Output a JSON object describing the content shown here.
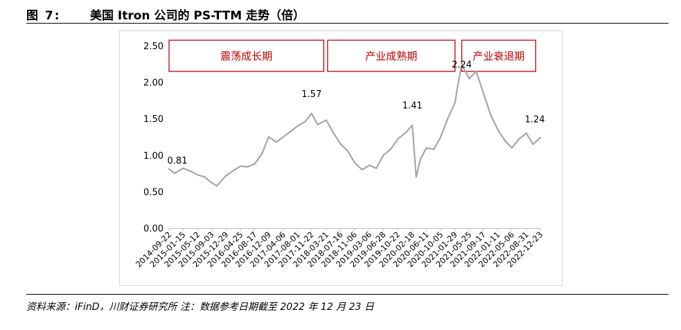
{
  "header": {
    "figure_label": "图 7:",
    "title": "美国 Itron 公司的 PS-TTM 走势（倍）"
  },
  "footer": {
    "source": "资料来源：iFinD，川财证券研究所   注：数据参考日期截至 2022 年 12 月 23 日"
  },
  "chart_data": {
    "type": "line",
    "title": "",
    "xlabel": "",
    "ylabel": "",
    "ylim": [
      0,
      2.5
    ],
    "yticks": [
      "0.00",
      "0.50",
      "1.00",
      "1.50",
      "2.00",
      "2.50"
    ],
    "x_tick_labels": [
      "2014-09-22",
      "2015-01-15",
      "2015-05-12",
      "2015-09-03",
      "2015-12-29",
      "2016-04-25",
      "2016-08-17",
      "2016-12-09",
      "2017-04-06",
      "2017-08-01",
      "2017-11-22",
      "2018-03-21",
      "2018-07-16",
      "2018-11-06",
      "2019-03-06",
      "2019-06-28",
      "2019-10-22",
      "2020-02-18",
      "2020-06-11",
      "2020-10-05",
      "2021-01-29",
      "2021-05-25",
      "2021-09-17",
      "2022-01-11",
      "2022-05-06",
      "2022-08-31",
      "2022-12-23"
    ],
    "line_color": "#a6a6a6",
    "grid": false,
    "series": [
      {
        "x": [
          "2014-09-22",
          "2014-11-05",
          "2015-01-15",
          "2015-03-15",
          "2015-05-12",
          "2015-07-10",
          "2015-09-03",
          "2015-10-15",
          "2015-12-29",
          "2016-02-20",
          "2016-04-25",
          "2016-06-20",
          "2016-08-17",
          "2016-10-15",
          "2016-12-09",
          "2017-02-10",
          "2017-04-06",
          "2017-06-01",
          "2017-08-01",
          "2017-10-01",
          "2017-11-22",
          "2018-01-10",
          "2018-03-21",
          "2018-05-20",
          "2018-07-16",
          "2018-09-10",
          "2018-11-06",
          "2019-01-05",
          "2019-03-06",
          "2019-05-01",
          "2019-06-28",
          "2019-08-25",
          "2019-10-22",
          "2019-12-20",
          "2020-02-18",
          "2020-03-20",
          "2020-04-25",
          "2020-06-11",
          "2020-08-10",
          "2020-10-05",
          "2020-12-01",
          "2021-01-29",
          "2021-02-20",
          "2021-03-25",
          "2021-05-25",
          "2021-07-20",
          "2021-09-17",
          "2021-11-15",
          "2022-01-11",
          "2022-03-10",
          "2022-05-06",
          "2022-07-01",
          "2022-08-31",
          "2022-10-25",
          "2022-12-23"
        ],
        "values": [
          0.81,
          0.75,
          0.82,
          0.78,
          0.73,
          0.7,
          0.62,
          0.58,
          0.72,
          0.78,
          0.85,
          0.84,
          0.88,
          1.02,
          1.25,
          1.18,
          1.25,
          1.32,
          1.4,
          1.46,
          1.57,
          1.42,
          1.48,
          1.3,
          1.15,
          1.06,
          0.9,
          0.8,
          0.86,
          0.82,
          1.0,
          1.08,
          1.22,
          1.3,
          1.41,
          0.7,
          0.95,
          1.1,
          1.08,
          1.25,
          1.5,
          1.72,
          1.95,
          2.24,
          2.05,
          2.15,
          1.85,
          1.55,
          1.35,
          1.2,
          1.1,
          1.22,
          1.3,
          1.15,
          1.24
        ]
      }
    ],
    "annotations": [
      {
        "text": "0.81",
        "x": "2014-09-22",
        "y": 0.81
      },
      {
        "text": "1.57",
        "x": "2017-11-22",
        "y": 1.57
      },
      {
        "text": "1.41",
        "x": "2020-02-18",
        "y": 1.41
      },
      {
        "text": "2.24",
        "x": "2021-03-25",
        "y": 2.24
      },
      {
        "text": "1.24",
        "x": "2022-12-23",
        "y": 1.24
      }
    ],
    "phases": [
      {
        "label": "震荡成长期",
        "start": "2014-09-22",
        "end": "2018-03-01"
      },
      {
        "label": "产业成熟期",
        "start": "2018-04-01",
        "end": "2021-01-29"
      },
      {
        "label": "产业衰退期",
        "start": "2021-03-25",
        "end": "2022-11-15"
      }
    ],
    "phase_box_color": "#c00000"
  }
}
